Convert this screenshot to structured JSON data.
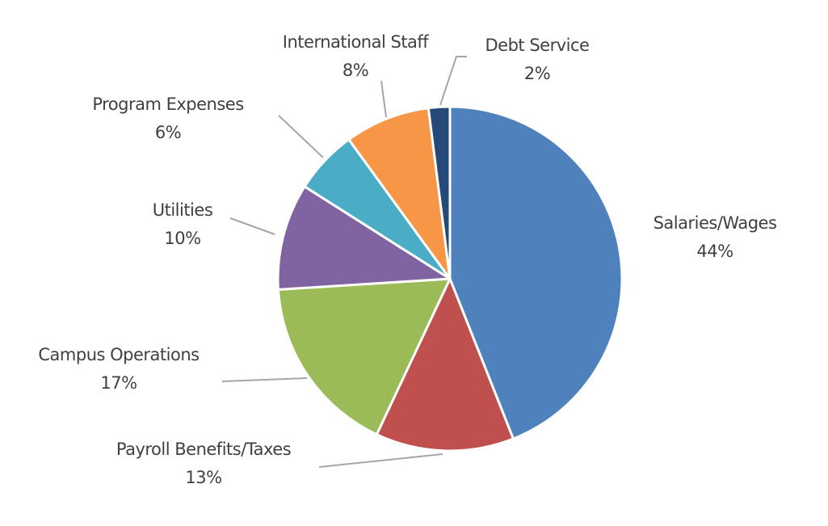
{
  "chart_data": {
    "type": "pie",
    "categories": [
      "Salaries/Wages",
      "Payroll Benefits/Taxes",
      "Campus Operations",
      "Utilities",
      "Program Expenses",
      "International Staff",
      "Debt Service"
    ],
    "values": [
      44,
      13,
      17,
      10,
      6,
      8,
      2
    ],
    "value_labels": [
      "44%",
      "13%",
      "17%",
      "10%",
      "6%",
      "8%",
      "2%"
    ],
    "colors": [
      "#4f81bd",
      "#c0504d",
      "#9bbb59",
      "#8064a2",
      "#4bacc6",
      "#f79646",
      "#254a77"
    ]
  }
}
